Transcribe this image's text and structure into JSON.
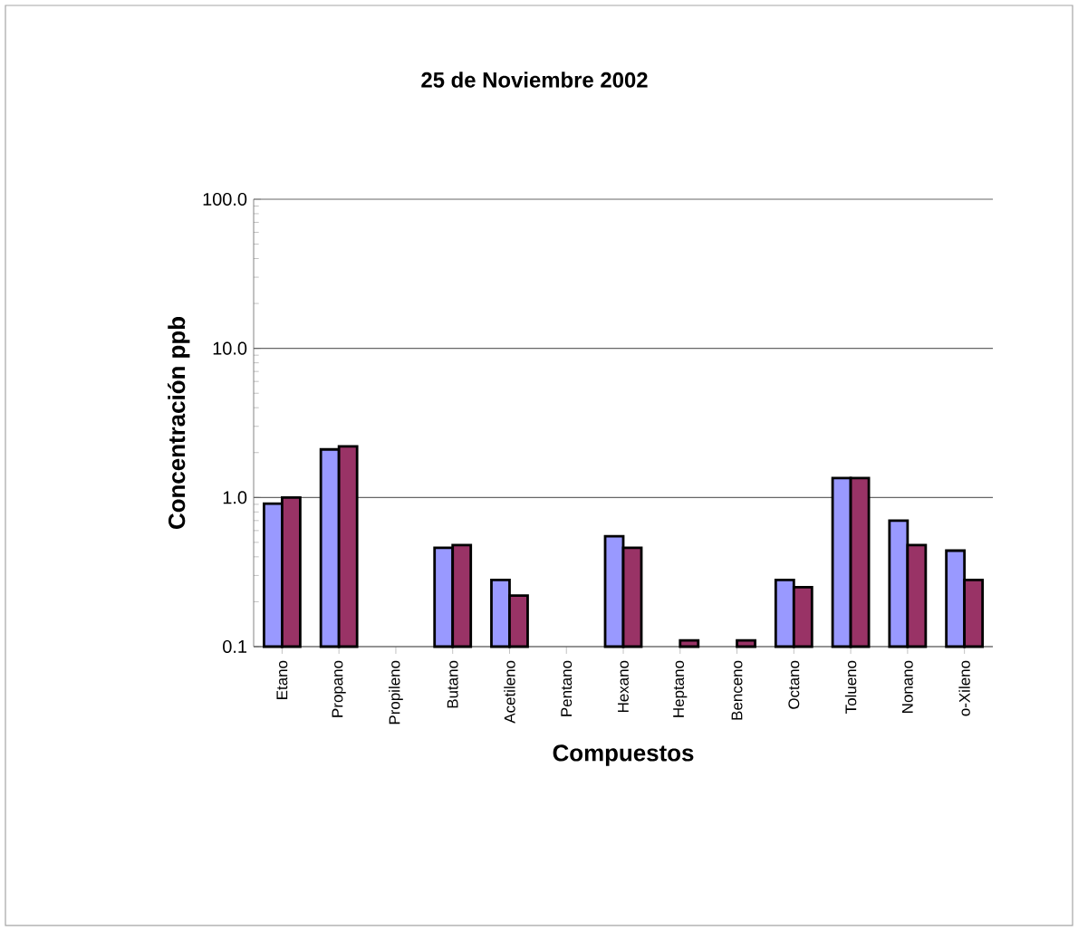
{
  "chart_data": {
    "type": "bar",
    "title": "25 de Noviembre 2002",
    "xlabel": "Compuestos",
    "ylabel": "Concentración  ppb",
    "categories": [
      "Etano",
      "Propano",
      "Propileno",
      "Butano",
      "Acetileno",
      "Pentano",
      "Hexano",
      "Heptano",
      "Benceno",
      "Octano",
      "Tolueno",
      "Nonano",
      "o-Xileno"
    ],
    "series": [
      {
        "color": "#9999ff",
        "values": [
          0.91,
          2.1,
          null,
          0.46,
          0.28,
          null,
          0.55,
          null,
          null,
          0.28,
          1.35,
          0.7,
          0.44
        ]
      },
      {
        "color": "#993366",
        "values": [
          1.0,
          2.2,
          null,
          0.48,
          0.22,
          null,
          0.46,
          0.11,
          0.11,
          0.25,
          1.35,
          0.48,
          0.28
        ]
      }
    ],
    "log": "y",
    "ylim": [
      0.1,
      100
    ],
    "yticks": [
      {
        "value": 0.1,
        "label": "0.1"
      },
      {
        "value": 1,
        "label": "1.0"
      },
      {
        "value": 10,
        "label": "10.0"
      },
      {
        "value": 100,
        "label": "100.0"
      }
    ],
    "grid": "y"
  }
}
